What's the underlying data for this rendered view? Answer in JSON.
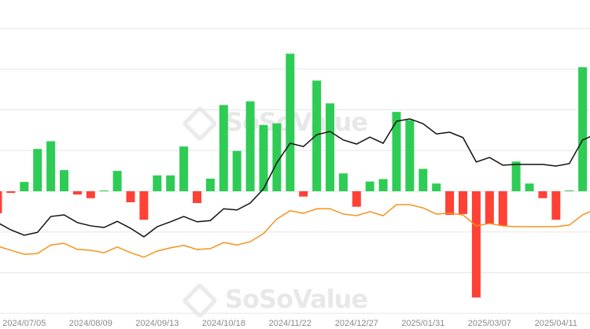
{
  "watermark": "SoSoValue",
  "colors": {
    "positive": "#2ecc55",
    "negative": "#ff4136",
    "line1": "#111111",
    "line2": "#f7931a",
    "grid": "#e6e6e6",
    "tick_label": "#8a8a8a"
  },
  "chart_data": {
    "type": "bar",
    "title": "",
    "xlabel": "",
    "ylabel": "",
    "ylim": [
      -3,
      4
    ],
    "grid": true,
    "legend": "none",
    "x_ticks": [
      {
        "index": 2,
        "label": "2024/07/05"
      },
      {
        "index": 7,
        "label": "2024/08/09"
      },
      {
        "index": 12,
        "label": "2024/09/13"
      },
      {
        "index": 17,
        "label": "2024/10/18"
      },
      {
        "index": 22,
        "label": "2024/11/22"
      },
      {
        "index": 27,
        "label": "2024/12/27"
      },
      {
        "index": 32,
        "label": "2025/01/31"
      },
      {
        "index": 37,
        "label": "2025/03/07"
      },
      {
        "index": 42,
        "label": "2025/04/11"
      }
    ],
    "bars": [
      -0.54,
      -0.04,
      0.23,
      1.04,
      1.23,
      0.52,
      -0.08,
      -0.17,
      0.02,
      0.5,
      -0.27,
      -0.7,
      0.39,
      0.39,
      1.1,
      -0.29,
      0.31,
      2.12,
      0.99,
      2.21,
      1.63,
      1.67,
      3.38,
      -0.13,
      2.72,
      2.16,
      0.44,
      -0.38,
      0.24,
      0.3,
      1.95,
      1.75,
      0.55,
      0.19,
      -0.58,
      -0.56,
      -2.61,
      -0.8,
      -0.85,
      0.73,
      0.19,
      -0.17,
      -0.7,
      0.02,
      3.05
    ],
    "series": [
      {
        "values": [
          -0.77,
          -0.95,
          -1.08,
          -1.01,
          -0.62,
          -0.58,
          -0.77,
          -0.85,
          -0.89,
          -0.74,
          -0.91,
          -1.12,
          -0.87,
          -0.75,
          -0.62,
          -0.75,
          -0.72,
          -0.43,
          -0.46,
          -0.29,
          0.06,
          0.7,
          1.18,
          1.1,
          1.39,
          1.47,
          1.26,
          1.16,
          1.33,
          1.18,
          1.72,
          1.78,
          1.66,
          1.41,
          1.45,
          1.32,
          0.72,
          0.83,
          0.64,
          0.66,
          0.66,
          0.66,
          0.62,
          0.68,
          1.26
        ]
      },
      {
        "values": [
          -1.35,
          -1.45,
          -1.55,
          -1.53,
          -1.32,
          -1.28,
          -1.43,
          -1.45,
          -1.51,
          -1.37,
          -1.51,
          -1.62,
          -1.47,
          -1.39,
          -1.33,
          -1.43,
          -1.41,
          -1.26,
          -1.32,
          -1.24,
          -1.04,
          -0.68,
          -0.48,
          -0.54,
          -0.43,
          -0.43,
          -0.56,
          -0.6,
          -0.5,
          -0.6,
          -0.33,
          -0.33,
          -0.41,
          -0.56,
          -0.54,
          -0.58,
          -0.85,
          -0.79,
          -0.85,
          -0.87,
          -0.87,
          -0.87,
          -0.87,
          -0.83,
          -0.58
        ]
      }
    ]
  }
}
